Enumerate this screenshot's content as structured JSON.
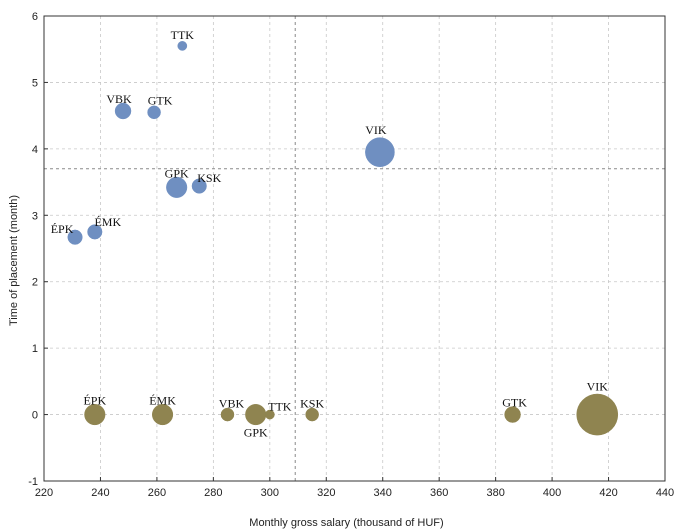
{
  "chart_data": {
    "type": "scatter",
    "title": "",
    "xlabel": "Monthly gross salary (thousand of HUF)",
    "ylabel": "Time of placement (month)",
    "xlim": [
      220,
      440
    ],
    "ylim": [
      -1,
      6
    ],
    "xticks": [
      "220",
      "240",
      "260",
      "280",
      "300",
      "320",
      "340",
      "360",
      "380",
      "400",
      "420",
      "440"
    ],
    "yticks": [
      "-1",
      "0",
      "1",
      "2",
      "3",
      "4",
      "5",
      "6"
    ],
    "grid": true,
    "reference_lines": {
      "x": 309,
      "y": 3.7
    },
    "colors": {
      "top_series": "#6f8fc1",
      "bottom_series": "#8f8450"
    },
    "series": [
      {
        "color": "#6f8fc1",
        "points": [
          {
            "label": "TTK",
            "x": 269,
            "y": 5.55,
            "size": 1
          },
          {
            "label": "VBK",
            "x": 248,
            "y": 4.57,
            "size": 3
          },
          {
            "label": "GTK",
            "x": 259,
            "y": 4.55,
            "size": 2
          },
          {
            "label": "VIK",
            "x": 339,
            "y": 3.95,
            "size": 10
          },
          {
            "label": "GPK",
            "x": 267,
            "y": 3.42,
            "size": 5
          },
          {
            "label": "KSK",
            "x": 275,
            "y": 3.44,
            "size": 2.5
          },
          {
            "label": "ÉMK",
            "x": 238,
            "y": 2.75,
            "size": 2.5
          },
          {
            "label": "ÉPK",
            "x": 231,
            "y": 2.67,
            "size": 2.5
          }
        ]
      },
      {
        "color": "#8f8450",
        "points": [
          {
            "label": "ÉPK",
            "x": 238,
            "y": 0,
            "size": 5
          },
          {
            "label": "ÉMK",
            "x": 262,
            "y": 0,
            "size": 5
          },
          {
            "label": "VBK",
            "x": 285,
            "y": 0,
            "size": 2
          },
          {
            "label": "GPK",
            "x": 295,
            "y": 0,
            "size": 5
          },
          {
            "label": "TTK",
            "x": 300,
            "y": 0,
            "size": 1
          },
          {
            "label": "KSK",
            "x": 315,
            "y": 0,
            "size": 2
          },
          {
            "label": "GTK",
            "x": 386,
            "y": 0,
            "size": 3
          },
          {
            "label": "VIK",
            "x": 416,
            "y": 0,
            "size": 20
          }
        ]
      }
    ]
  }
}
